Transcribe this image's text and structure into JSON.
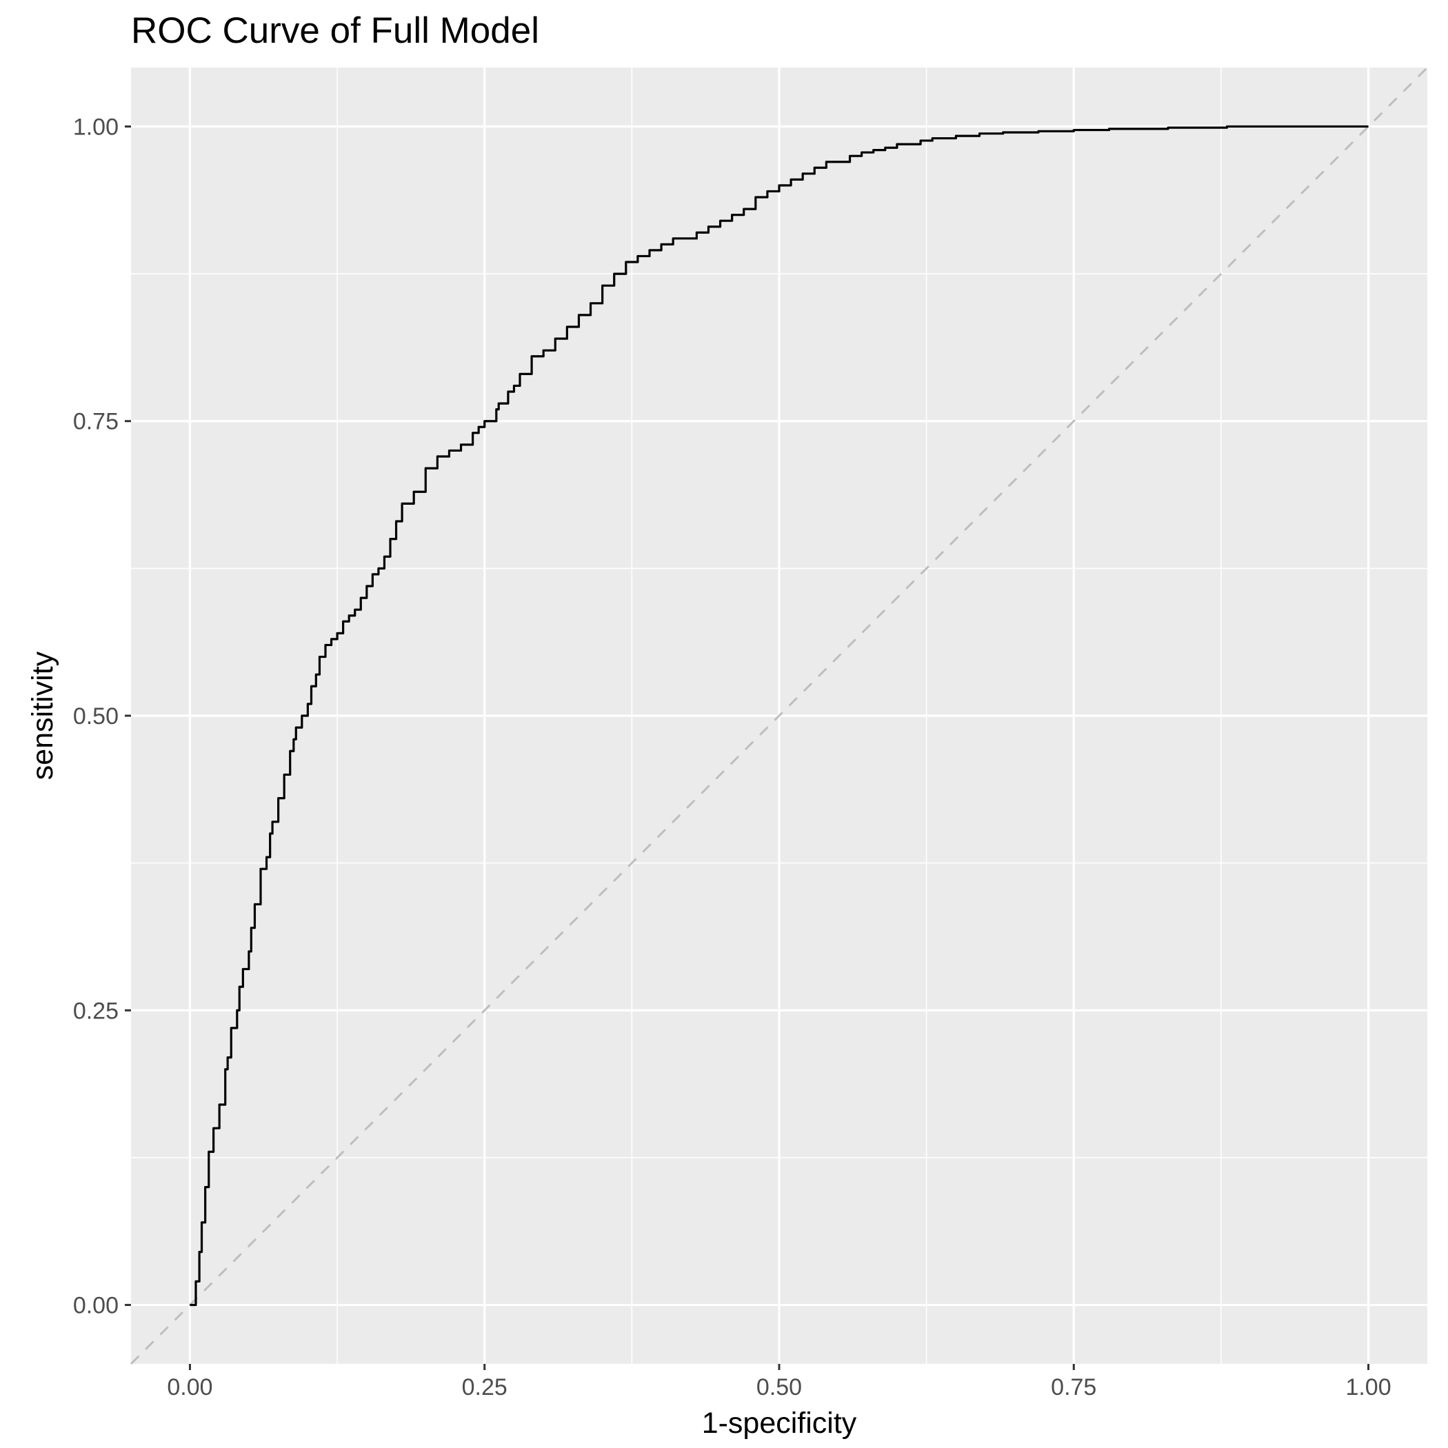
{
  "chart_data": {
    "type": "line",
    "title": "ROC Curve of Full Model",
    "xlabel": "1-specificity",
    "ylabel": "sensitivity",
    "xlim": [
      -0.05,
      1.05
    ],
    "ylim": [
      -0.05,
      1.05
    ],
    "x_ticks": [
      0,
      0.25,
      0.5,
      0.75,
      1
    ],
    "y_ticks": [
      0,
      0.25,
      0.5,
      0.75,
      1
    ],
    "x_tick_labels": [
      "0.00",
      "0.25",
      "0.50",
      "0.75",
      "1.00"
    ],
    "y_tick_labels": [
      "0.00",
      "0.25",
      "0.50",
      "0.75",
      "1.00"
    ],
    "grid": true,
    "colors": {
      "panel": "#ebebeb",
      "grid": "#ffffff",
      "curve": "#000000",
      "reference": "#bebebe",
      "tick_label": "#4d4d4d"
    },
    "series": [
      {
        "style": "step",
        "x": [
          0.0,
          0.005,
          0.008,
          0.01,
          0.013,
          0.016,
          0.02,
          0.025,
          0.03,
          0.032,
          0.035,
          0.04,
          0.042,
          0.045,
          0.05,
          0.052,
          0.055,
          0.06,
          0.065,
          0.068,
          0.07,
          0.075,
          0.08,
          0.085,
          0.088,
          0.09,
          0.095,
          0.1,
          0.103,
          0.107,
          0.11,
          0.115,
          0.12,
          0.125,
          0.13,
          0.135,
          0.14,
          0.145,
          0.15,
          0.155,
          0.16,
          0.165,
          0.17,
          0.175,
          0.18,
          0.19,
          0.2,
          0.21,
          0.22,
          0.23,
          0.24,
          0.245,
          0.25,
          0.26,
          0.262,
          0.27,
          0.275,
          0.28,
          0.29,
          0.3,
          0.31,
          0.32,
          0.33,
          0.34,
          0.35,
          0.36,
          0.37,
          0.38,
          0.39,
          0.4,
          0.41,
          0.42,
          0.43,
          0.44,
          0.45,
          0.46,
          0.47,
          0.48,
          0.49,
          0.5,
          0.51,
          0.52,
          0.53,
          0.54,
          0.55,
          0.56,
          0.57,
          0.58,
          0.59,
          0.6,
          0.62,
          0.63,
          0.65,
          0.67,
          0.69,
          0.72,
          0.75,
          0.78,
          0.83,
          0.88,
          0.9,
          1.0
        ],
        "y": [
          0.0,
          0.02,
          0.045,
          0.07,
          0.1,
          0.13,
          0.15,
          0.17,
          0.2,
          0.21,
          0.235,
          0.25,
          0.27,
          0.285,
          0.3,
          0.32,
          0.34,
          0.37,
          0.38,
          0.4,
          0.41,
          0.43,
          0.45,
          0.47,
          0.48,
          0.49,
          0.5,
          0.51,
          0.525,
          0.535,
          0.55,
          0.56,
          0.565,
          0.57,
          0.58,
          0.585,
          0.59,
          0.6,
          0.61,
          0.62,
          0.625,
          0.635,
          0.65,
          0.665,
          0.68,
          0.69,
          0.71,
          0.72,
          0.725,
          0.73,
          0.74,
          0.745,
          0.75,
          0.76,
          0.765,
          0.775,
          0.78,
          0.79,
          0.805,
          0.81,
          0.82,
          0.83,
          0.84,
          0.85,
          0.865,
          0.875,
          0.885,
          0.89,
          0.895,
          0.9,
          0.905,
          0.905,
          0.91,
          0.915,
          0.92,
          0.925,
          0.93,
          0.94,
          0.945,
          0.95,
          0.955,
          0.96,
          0.965,
          0.97,
          0.97,
          0.975,
          0.978,
          0.98,
          0.982,
          0.985,
          0.988,
          0.99,
          0.992,
          0.994,
          0.995,
          0.996,
          0.997,
          0.998,
          0.999,
          1.0,
          1.0,
          1.0
        ]
      }
    ],
    "reference_line": {
      "x": [
        -0.05,
        1.05
      ],
      "y": [
        -0.05,
        1.05
      ]
    }
  }
}
